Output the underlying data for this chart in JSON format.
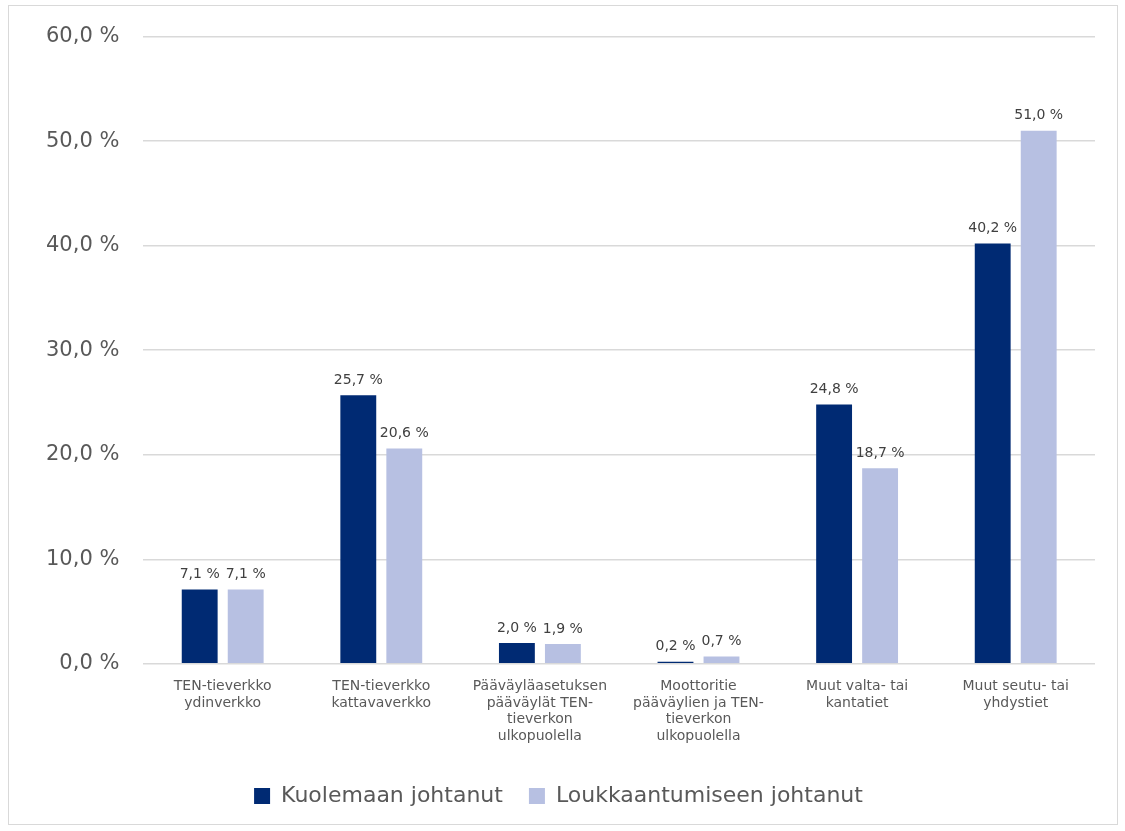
{
  "chart_data": {
    "type": "bar",
    "categories": [
      "TEN-tieverkko ydinverkko",
      "TEN-tieverkko kattavaverkko",
      "Pääväyläasetuksen pääväylät TEN-tieverkon ulkopuolella",
      "Moottoritie pääväylien ja TEN-tieverkon ulkopuolella",
      "Muut valta- tai kantatiet",
      "Muut seutu- tai yhdystiet"
    ],
    "series": [
      {
        "name": "Kuolemaan johtanut",
        "color": "#002a73",
        "values": [
          7.1,
          25.7,
          2.0,
          0.2,
          24.8,
          40.2
        ],
        "value_labels": [
          "7,1 %",
          "25,7 %",
          "2,0 %",
          "0,2 %",
          "24,8 %",
          "40,2 %"
        ]
      },
      {
        "name": "Loukkaantumiseen johtanut",
        "color": "#b7c0e2",
        "values": [
          7.1,
          20.6,
          1.9,
          0.7,
          18.7,
          51.0
        ],
        "value_labels": [
          "7,1 %",
          "20,6 %",
          "1,9 %",
          "0,7 %",
          "18,7 %",
          "51,0 %"
        ]
      }
    ],
    "ylim": [
      0,
      60
    ],
    "yticks": [
      {
        "value": 0,
        "label": "0,0 %"
      },
      {
        "value": 10,
        "label": "10,0 %"
      },
      {
        "value": 20,
        "label": "20,0 %"
      },
      {
        "value": 30,
        "label": "30,0 %"
      },
      {
        "value": 40,
        "label": "40,0 %"
      },
      {
        "value": 50,
        "label": "50,0 %"
      },
      {
        "value": 60,
        "label": "60,0 %"
      }
    ],
    "grid": "y",
    "legend": "bottom"
  }
}
